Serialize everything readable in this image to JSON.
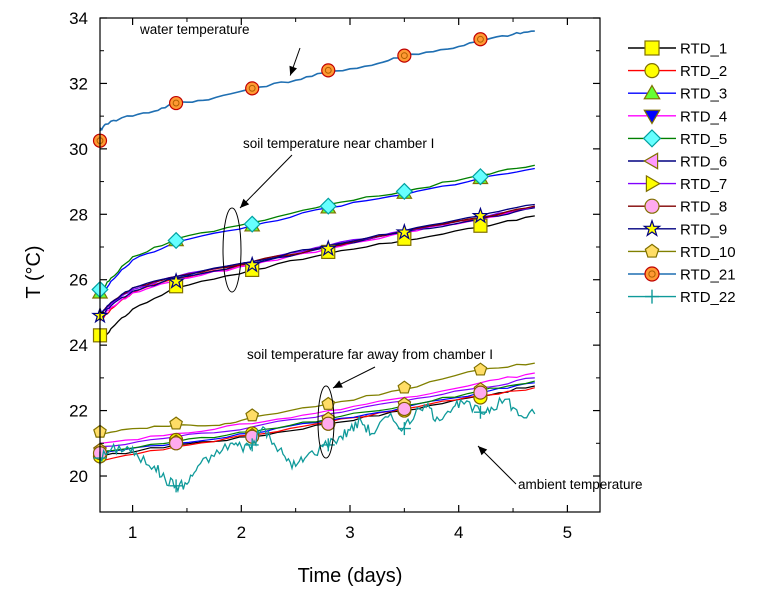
{
  "chart_data": {
    "type": "line",
    "xlabel": "Time (days)",
    "ylabel": "T (°C)",
    "xlim": [
      0.7,
      5.3
    ],
    "ylim": [
      18.9,
      34
    ],
    "xticks": [
      1,
      2,
      3,
      4,
      5
    ],
    "yticks": [
      20,
      22,
      24,
      26,
      28,
      30,
      32,
      34
    ],
    "grid": false,
    "legend_position": "right",
    "annotations": [
      {
        "text": "water temperature",
        "target": [
          2.45,
          32.15
        ]
      },
      {
        "text": "soil temperature near chamber I",
        "target": [
          1.7,
          26.5
        ]
      },
      {
        "text": "soil temperature far away from chamber I",
        "target": [
          2.45,
          22.2
        ]
      },
      {
        "text": "ambient temperature",
        "target": [
          3.5,
          20.8
        ]
      }
    ],
    "series": [
      {
        "name": "RTD_1",
        "color": "#000000",
        "marker": "square",
        "marker_fill": "#ffff00",
        "points": [
          [
            0.7,
            24.1
          ],
          [
            0.8,
            24.5
          ],
          [
            1.0,
            25.1
          ],
          [
            1.4,
            25.75
          ],
          [
            2.1,
            26.3
          ],
          [
            2.8,
            26.8
          ],
          [
            3.5,
            27.2
          ],
          [
            4.2,
            27.6
          ],
          [
            4.7,
            27.95
          ]
        ],
        "marker_points": [
          [
            0.7,
            24.3
          ],
          [
            1.4,
            25.8
          ],
          [
            2.1,
            26.3
          ],
          [
            2.8,
            26.85
          ],
          [
            3.5,
            27.25
          ],
          [
            4.2,
            27.65
          ]
        ]
      },
      {
        "name": "RTD_2",
        "color": "#ff0000",
        "marker": "circle",
        "marker_fill": "#ffff00",
        "points": [
          [
            0.7,
            24.75
          ],
          [
            0.8,
            25.1
          ],
          [
            1.0,
            25.6
          ],
          [
            1.4,
            26.05
          ],
          [
            2.1,
            26.5
          ],
          [
            2.8,
            27.0
          ],
          [
            3.5,
            27.5
          ],
          [
            4.2,
            27.9
          ],
          [
            4.7,
            28.25
          ]
        ],
        "marker_points": []
      },
      {
        "name": "RTD_3",
        "color": "#0000ff",
        "marker": "triangle-up",
        "marker_fill": "#66ff33",
        "points": [
          [
            0.7,
            25.5
          ],
          [
            0.8,
            25.95
          ],
          [
            1.0,
            26.6
          ],
          [
            1.4,
            27.15
          ],
          [
            2.1,
            27.65
          ],
          [
            2.8,
            28.2
          ],
          [
            3.5,
            28.6
          ],
          [
            4.2,
            29.1
          ],
          [
            4.7,
            29.4
          ]
        ],
        "marker_points": [
          [
            0.7,
            25.6
          ],
          [
            1.4,
            27.2
          ],
          [
            2.1,
            27.65
          ],
          [
            2.8,
            28.2
          ],
          [
            3.5,
            28.65
          ],
          [
            4.2,
            29.1
          ]
        ]
      },
      {
        "name": "RTD_4",
        "color": "#ff00ff",
        "marker": "triangle-down",
        "marker_fill": "#0000ff",
        "points": [
          [
            0.7,
            24.8
          ],
          [
            0.8,
            25.15
          ],
          [
            1.0,
            25.6
          ],
          [
            1.4,
            26.0
          ],
          [
            2.1,
            26.45
          ],
          [
            2.8,
            26.95
          ],
          [
            3.5,
            27.45
          ],
          [
            4.2,
            27.85
          ],
          [
            4.7,
            28.2
          ]
        ],
        "marker_points": []
      },
      {
        "name": "RTD_5",
        "color": "#008000",
        "marker": "diamond",
        "marker_fill": "#66ffff",
        "points": [
          [
            0.7,
            25.6
          ],
          [
            0.8,
            26.05
          ],
          [
            1.0,
            26.7
          ],
          [
            1.4,
            27.25
          ],
          [
            2.1,
            27.75
          ],
          [
            2.8,
            28.3
          ],
          [
            3.5,
            28.7
          ],
          [
            4.2,
            29.2
          ],
          [
            4.7,
            29.5
          ]
        ],
        "marker_points": [
          [
            0.7,
            25.7
          ],
          [
            1.4,
            27.2
          ],
          [
            2.1,
            27.7
          ],
          [
            2.8,
            28.25
          ],
          [
            3.5,
            28.7
          ],
          [
            4.2,
            29.15
          ]
        ]
      },
      {
        "name": "RTD_6",
        "color": "#000080",
        "marker": "triangle-left",
        "marker_fill": "#ff99ff",
        "points": [
          [
            0.7,
            24.85
          ],
          [
            0.8,
            25.2
          ],
          [
            1.0,
            25.65
          ],
          [
            1.4,
            26.05
          ],
          [
            2.1,
            26.5
          ],
          [
            2.8,
            27.0
          ],
          [
            3.5,
            27.45
          ],
          [
            4.2,
            27.85
          ],
          [
            4.7,
            28.2
          ]
        ],
        "marker_points": []
      },
      {
        "name": "RTD_7",
        "color": "#8000ff",
        "marker": "triangle-right",
        "marker_fill": "#ffff00",
        "points": [
          [
            0.7,
            24.9
          ],
          [
            0.8,
            25.25
          ],
          [
            1.0,
            25.7
          ],
          [
            1.4,
            26.1
          ],
          [
            2.1,
            26.55
          ],
          [
            2.8,
            27.05
          ],
          [
            3.5,
            27.5
          ],
          [
            4.2,
            27.9
          ],
          [
            4.7,
            28.25
          ]
        ],
        "marker_points": []
      },
      {
        "name": "RTD_8",
        "color": "#800000",
        "marker": "circle",
        "marker_fill": "#ffaaee",
        "points": [
          [
            0.7,
            24.9
          ],
          [
            0.8,
            25.3
          ],
          [
            1.0,
            25.75
          ],
          [
            1.4,
            26.1
          ],
          [
            2.1,
            26.55
          ],
          [
            2.8,
            27.0
          ],
          [
            3.5,
            27.5
          ],
          [
            4.2,
            27.9
          ],
          [
            4.7,
            28.25
          ]
        ],
        "marker_points": []
      },
      {
        "name": "RTD_9",
        "color": "#000080",
        "marker": "star",
        "marker_fill": "#ffff00",
        "points": [
          [
            0.7,
            24.95
          ],
          [
            0.8,
            25.3
          ],
          [
            1.0,
            25.75
          ],
          [
            1.4,
            26.1
          ],
          [
            2.1,
            26.55
          ],
          [
            2.8,
            27.05
          ],
          [
            3.5,
            27.5
          ],
          [
            4.2,
            27.95
          ],
          [
            4.7,
            28.3
          ]
        ],
        "marker_points": [
          [
            0.7,
            24.9
          ],
          [
            1.4,
            25.95
          ],
          [
            2.1,
            26.45
          ],
          [
            2.8,
            26.95
          ],
          [
            3.5,
            27.45
          ],
          [
            4.2,
            27.95
          ]
        ]
      },
      {
        "name": "RTD_10",
        "color": "#808000",
        "marker": "pentagon",
        "marker_fill": "#ffdd66",
        "points": [
          [
            0.7,
            21.3
          ],
          [
            1.0,
            21.45
          ],
          [
            1.4,
            21.55
          ],
          [
            1.8,
            21.55
          ],
          [
            2.1,
            21.8
          ],
          [
            2.8,
            22.2
          ],
          [
            3.5,
            22.65
          ],
          [
            4.2,
            23.25
          ],
          [
            4.7,
            23.45
          ]
        ],
        "marker_points": [
          [
            0.7,
            21.35
          ],
          [
            1.4,
            21.6
          ],
          [
            2.1,
            21.85
          ],
          [
            2.8,
            22.2
          ],
          [
            3.5,
            22.7
          ],
          [
            4.2,
            23.25
          ]
        ]
      },
      {
        "name": "RTD_21",
        "color": "#1f6fb2",
        "marker": "circle-dot",
        "marker_fill": "#ff9933",
        "points": [
          [
            0.7,
            30.55
          ],
          [
            0.75,
            30.75
          ],
          [
            0.9,
            30.95
          ],
          [
            1.2,
            31.15
          ],
          [
            1.4,
            31.4
          ],
          [
            1.7,
            31.5
          ],
          [
            2.1,
            31.85
          ],
          [
            2.5,
            32.1
          ],
          [
            2.8,
            32.35
          ],
          [
            3.2,
            32.55
          ],
          [
            3.5,
            32.85
          ],
          [
            3.9,
            33.05
          ],
          [
            4.2,
            33.3
          ],
          [
            4.5,
            33.5
          ],
          [
            4.7,
            33.6
          ]
        ],
        "marker_points": [
          [
            0.7,
            30.25
          ],
          [
            1.4,
            31.4
          ],
          [
            2.1,
            31.85
          ],
          [
            2.8,
            32.4
          ],
          [
            3.5,
            32.85
          ],
          [
            4.2,
            33.35
          ]
        ]
      },
      {
        "name": "RTD_22",
        "color": "#0f9a9a",
        "marker": "plus",
        "marker_fill": "#0f9a9a",
        "points": [
          [
            0.7,
            20.55
          ],
          [
            0.8,
            20.8
          ],
          [
            0.95,
            20.9
          ],
          [
            1.05,
            20.6
          ],
          [
            1.2,
            20.3
          ],
          [
            1.3,
            19.9
          ],
          [
            1.4,
            19.7
          ],
          [
            1.5,
            19.75
          ],
          [
            1.6,
            20.3
          ],
          [
            1.75,
            20.6
          ],
          [
            1.9,
            21.0
          ],
          [
            2.0,
            20.9
          ],
          [
            2.1,
            20.95
          ],
          [
            2.2,
            21.5
          ],
          [
            2.3,
            21.0
          ],
          [
            2.4,
            20.6
          ],
          [
            2.5,
            20.3
          ],
          [
            2.6,
            20.6
          ],
          [
            2.75,
            20.9
          ],
          [
            2.9,
            21.2
          ],
          [
            3.0,
            21.4
          ],
          [
            3.1,
            21.7
          ],
          [
            3.2,
            21.3
          ],
          [
            3.35,
            21.8
          ],
          [
            3.5,
            21.5
          ],
          [
            3.6,
            21.9
          ],
          [
            3.7,
            22.1
          ],
          [
            3.8,
            21.8
          ],
          [
            3.95,
            22.1
          ],
          [
            4.05,
            22.2
          ],
          [
            4.2,
            21.95
          ],
          [
            4.3,
            22.1
          ],
          [
            4.45,
            22.35
          ],
          [
            4.55,
            21.85
          ],
          [
            4.7,
            21.9
          ]
        ],
        "marker_points": [
          [
            0.7,
            20.55
          ],
          [
            1.4,
            19.7
          ],
          [
            2.1,
            20.95
          ],
          [
            2.8,
            20.95
          ],
          [
            3.5,
            21.45
          ],
          [
            4.2,
            21.95
          ]
        ]
      }
    ],
    "lower_bundle": [
      {
        "color": "#000000",
        "points": [
          [
            0.7,
            20.6
          ],
          [
            1.4,
            20.95
          ],
          [
            2.1,
            21.2
          ],
          [
            2.8,
            21.6
          ],
          [
            3.5,
            22.0
          ],
          [
            4.2,
            22.45
          ],
          [
            4.7,
            22.75
          ]
        ]
      },
      {
        "color": "#ff0000",
        "points": [
          [
            0.7,
            20.45
          ],
          [
            1.4,
            20.9
          ],
          [
            2.1,
            21.25
          ],
          [
            2.8,
            21.65
          ],
          [
            3.5,
            22.05
          ],
          [
            4.2,
            22.45
          ],
          [
            4.7,
            22.7
          ]
        ]
      },
      {
        "color": "#0000ff",
        "points": [
          [
            0.7,
            20.7
          ],
          [
            1.4,
            21.0
          ],
          [
            2.1,
            21.3
          ],
          [
            2.8,
            21.7
          ],
          [
            3.5,
            22.1
          ],
          [
            4.2,
            22.55
          ],
          [
            4.7,
            22.85
          ]
        ]
      },
      {
        "color": "#ff00ff",
        "points": [
          [
            0.7,
            21.0
          ],
          [
            1.4,
            21.3
          ],
          [
            2.1,
            21.6
          ],
          [
            2.8,
            22.0
          ],
          [
            3.5,
            22.4
          ],
          [
            4.2,
            22.85
          ],
          [
            4.7,
            23.15
          ]
        ]
      },
      {
        "color": "#008000",
        "points": [
          [
            0.7,
            20.75
          ],
          [
            1.4,
            21.05
          ],
          [
            2.1,
            21.35
          ],
          [
            2.8,
            21.75
          ],
          [
            3.5,
            22.15
          ],
          [
            4.2,
            22.6
          ],
          [
            4.7,
            22.9
          ]
        ]
      },
      {
        "color": "#8000ff",
        "points": [
          [
            0.7,
            20.9
          ],
          [
            1.4,
            21.2
          ],
          [
            2.1,
            21.5
          ],
          [
            2.8,
            21.9
          ],
          [
            3.5,
            22.3
          ],
          [
            4.2,
            22.7
          ],
          [
            4.7,
            23.0
          ]
        ]
      }
    ],
    "lower_markers": [
      {
        "shape": "circle",
        "fill": "#ffff00",
        "points": [
          [
            0.7,
            20.6
          ],
          [
            1.4,
            21.1
          ],
          [
            2.1,
            21.3
          ],
          [
            2.8,
            21.6
          ],
          [
            3.5,
            22.0
          ],
          [
            4.2,
            22.4
          ]
        ]
      },
      {
        "shape": "pentagon",
        "fill": "#ffdd66",
        "points": [
          [
            0.7,
            20.8
          ],
          [
            1.4,
            21.05
          ],
          [
            2.1,
            21.25
          ],
          [
            2.8,
            21.75
          ],
          [
            3.5,
            22.2
          ],
          [
            4.2,
            22.65
          ]
        ]
      },
      {
        "shape": "circle",
        "fill": "#ffaaee",
        "points": [
          [
            0.7,
            20.7
          ],
          [
            1.4,
            21.0
          ],
          [
            2.1,
            21.2
          ],
          [
            2.8,
            21.6
          ],
          [
            3.5,
            22.05
          ],
          [
            4.2,
            22.55
          ]
        ]
      }
    ]
  }
}
